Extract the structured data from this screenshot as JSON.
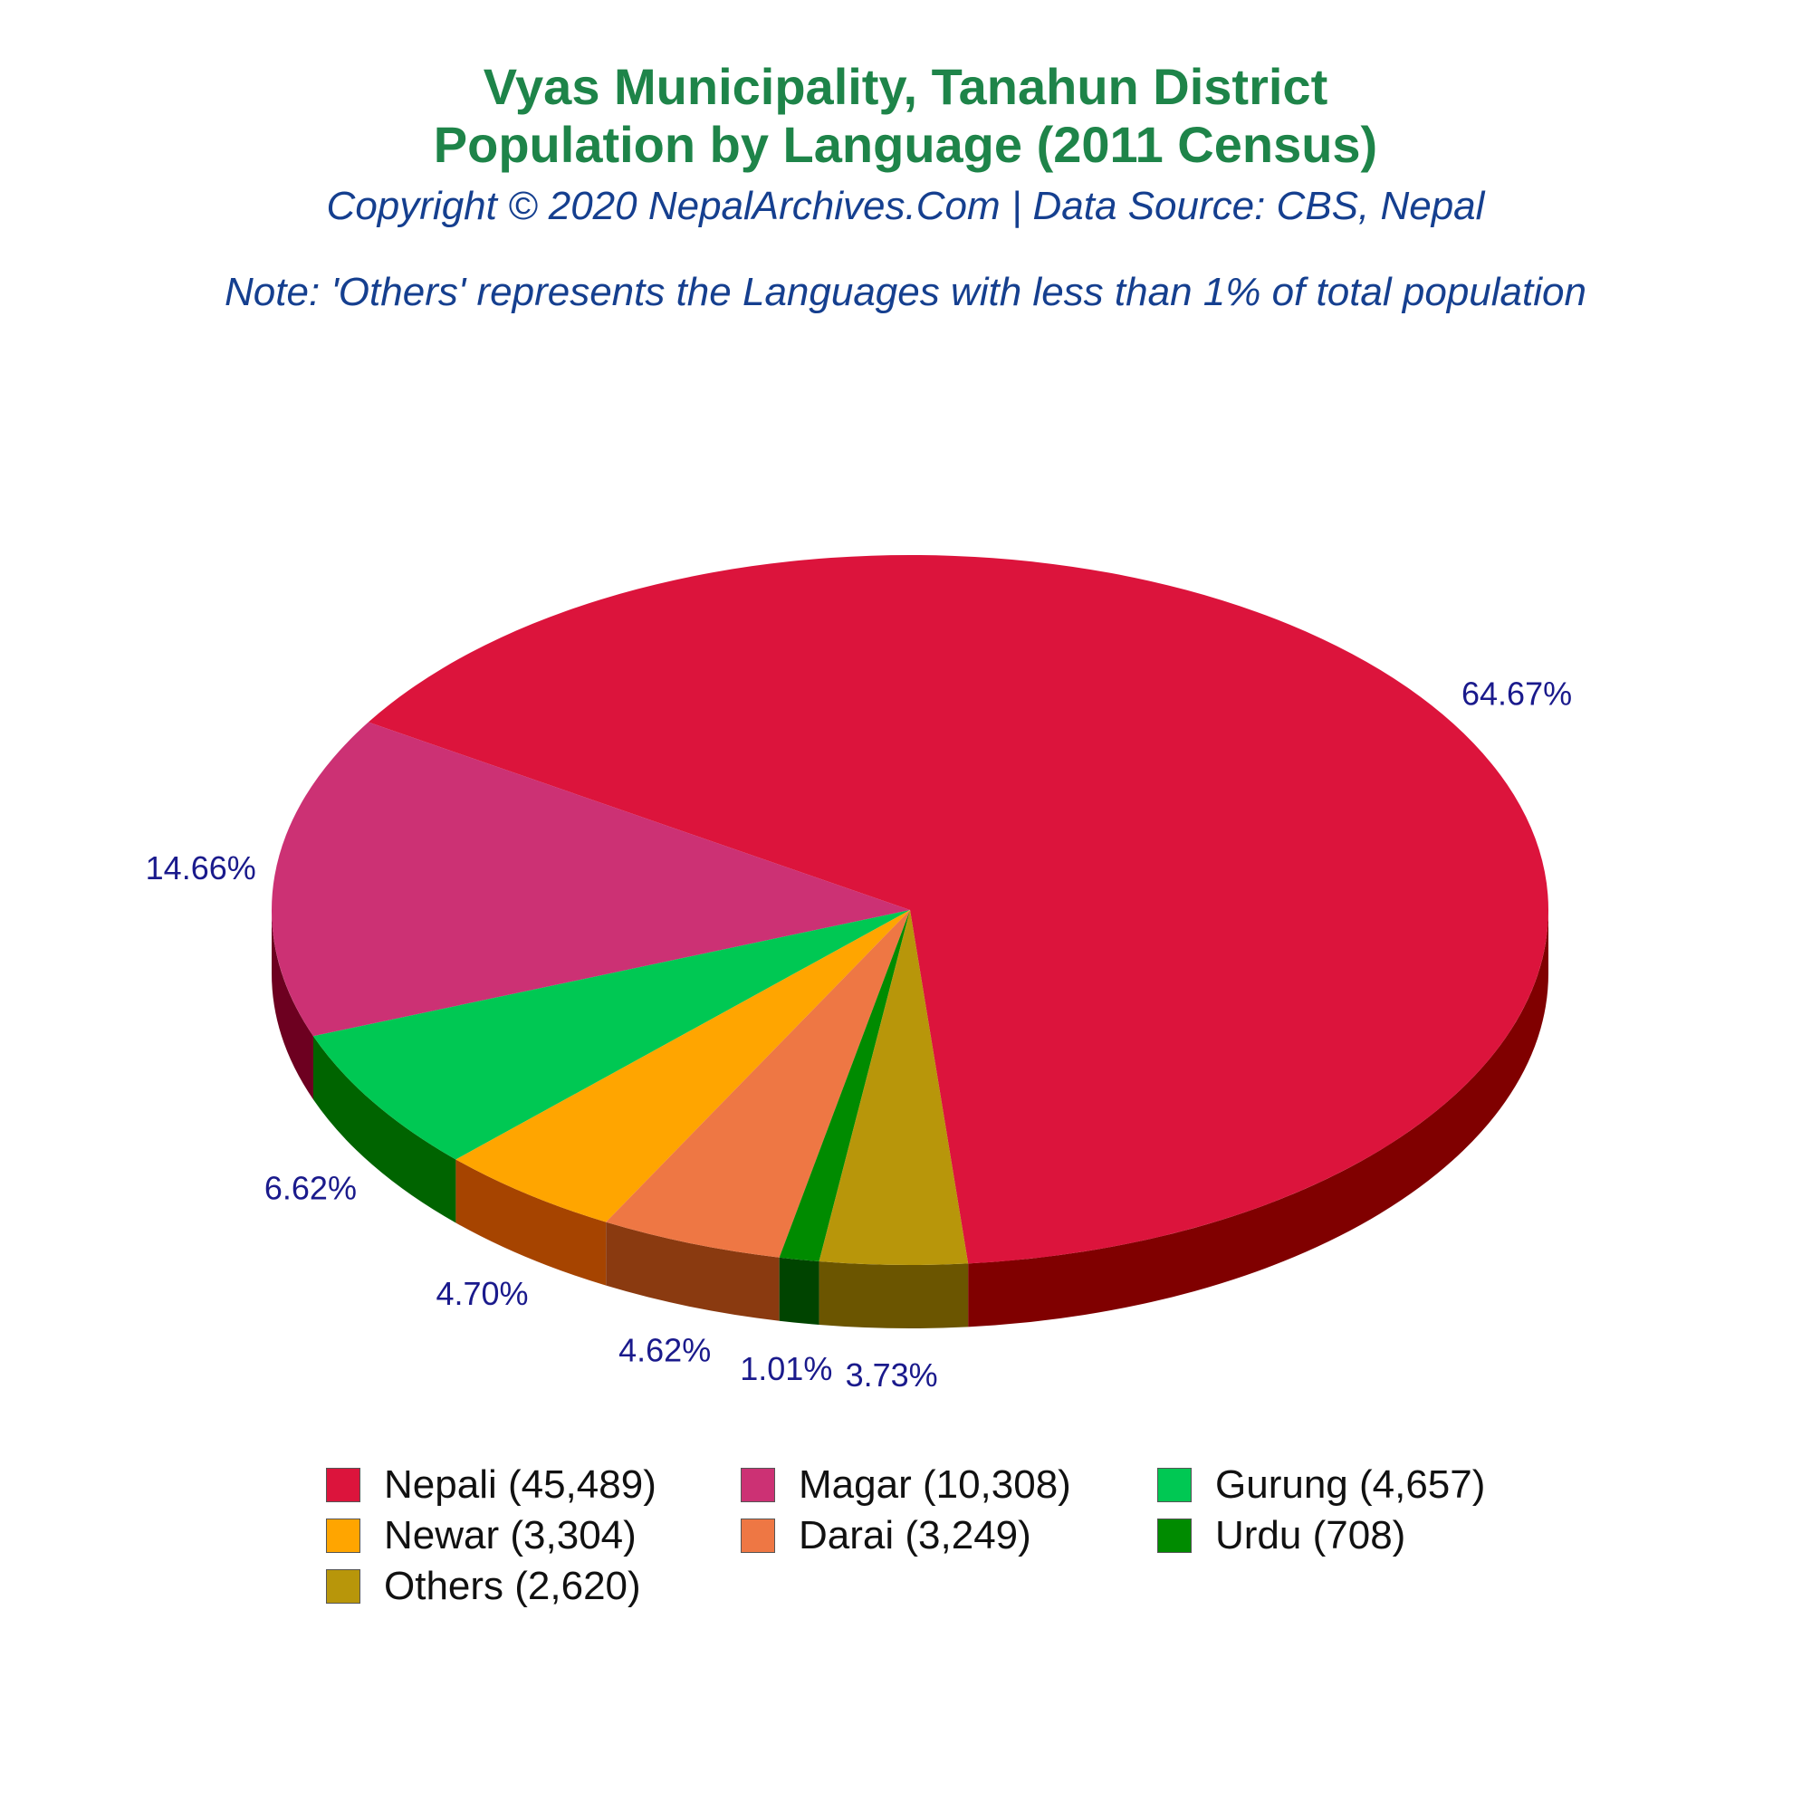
{
  "header": {
    "title_line1": "Vyas Municipality, Tanahun District",
    "title_line2": "Population by Language (2011 Census)",
    "copyright": "Copyright © 2020 NepalArchives.Com | Data Source: CBS, Nepal",
    "note": "Note: 'Others' represents the Languages with less than 1% of total population"
  },
  "chart_data": {
    "type": "pie",
    "style": "3d",
    "legend_position": "bottom",
    "slices": [
      {
        "label": "Nepali",
        "value": 45489,
        "percent": "64.67%",
        "legend": "Nepali (45,489)",
        "color": "#dc143c",
        "side": "#800000"
      },
      {
        "label": "Magar",
        "value": 10308,
        "percent": "14.66%",
        "legend": "Magar (10,308)",
        "color": "#cc3174",
        "side": "#6d0020"
      },
      {
        "label": "Gurung",
        "value": 4657,
        "percent": "6.62%",
        "legend": "Gurung (4,657)",
        "color": "#00c853",
        "side": "#006400"
      },
      {
        "label": "Newar",
        "value": 3304,
        "percent": "4.70%",
        "legend": "Newar (3,304)",
        "color": "#ffa500",
        "side": "#a64400"
      },
      {
        "label": "Darai",
        "value": 3249,
        "percent": "4.62%",
        "legend": "Darai (3,249)",
        "color": "#ee7744",
        "side": "#8a3a10"
      },
      {
        "label": "Urdu",
        "value": 708,
        "percent": "1.01%",
        "legend": "Urdu (708)",
        "color": "#008b00",
        "side": "#004400"
      },
      {
        "label": "Others",
        "value": 2620,
        "percent": "3.73%",
        "legend": "Others (2,620)",
        "color": "#b8960a",
        "side": "#6b5500"
      }
    ]
  }
}
